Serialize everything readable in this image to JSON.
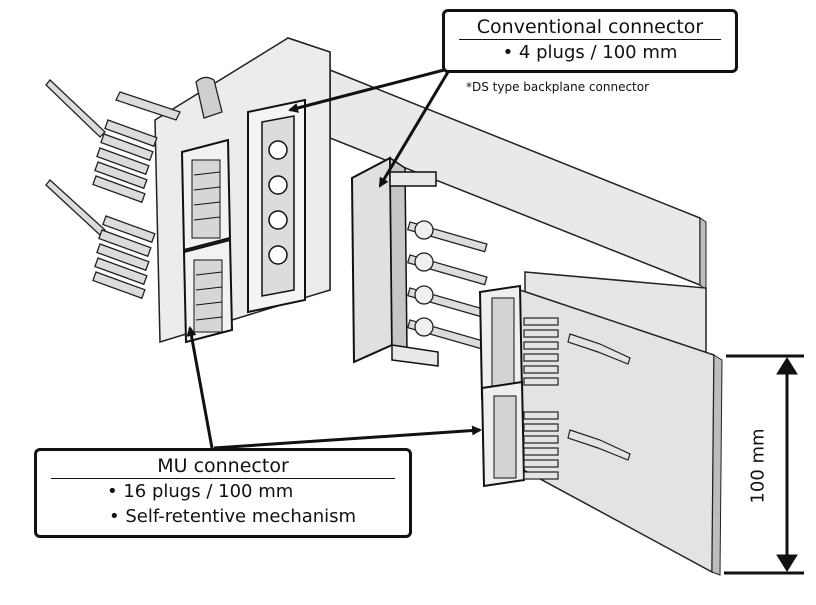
{
  "conventional": {
    "title": "Conventional connector",
    "items": [
      "• 4 plugs / 100 mm"
    ],
    "note": "*DS type backplane connector"
  },
  "mu": {
    "title": "MU connector",
    "items": [
      "• 16 plugs / 100 mm",
      "• Self-retentive mechanism"
    ]
  },
  "dimension": {
    "label": "100 mm"
  },
  "colors": {
    "panel": "#e7e7e7",
    "panel_dark": "#c8c8c8",
    "line": "#111111"
  }
}
